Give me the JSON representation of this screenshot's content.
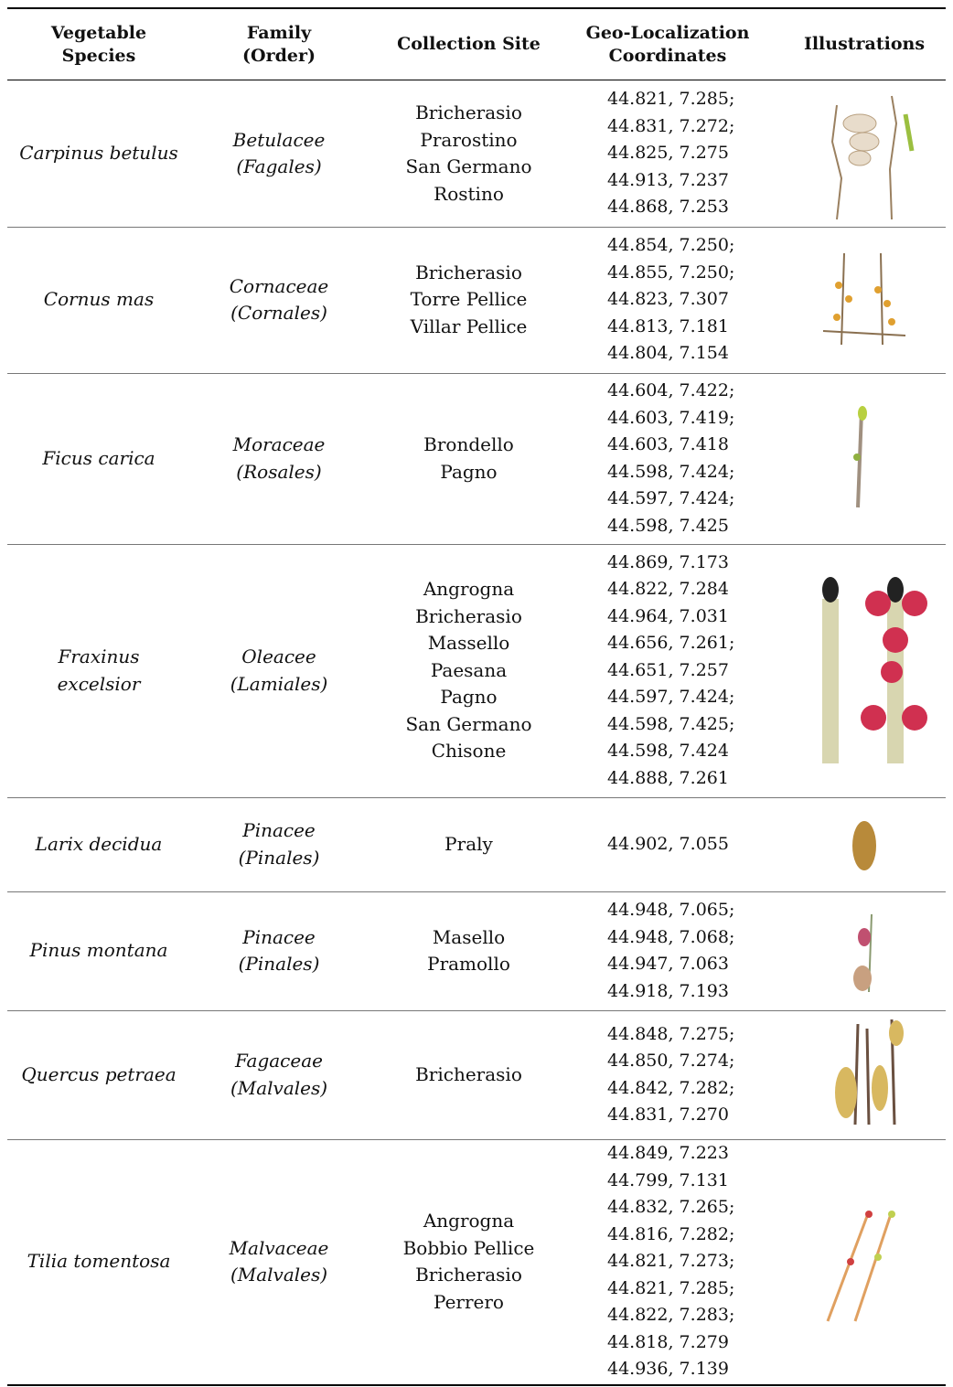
{
  "table": {
    "header": [
      [
        "Vegetable",
        "Species"
      ],
      [
        "Family",
        "(Order)"
      ],
      [
        "Collection Site"
      ],
      [
        "Geo-Localization",
        "Coordinates"
      ],
      [
        "Illustrations"
      ]
    ],
    "rows": [
      {
        "species": [
          "Carpinus betulus"
        ],
        "family": [
          "Betulacee",
          "(Fagales)"
        ],
        "sites": [
          "Bricherasio",
          "Prarostino",
          "San Germano",
          "Rostino"
        ],
        "coordinates": [
          "44.821, 7.285;",
          "44.831, 7.272;",
          "44.825, 7.275",
          "44.913, 7.237",
          "44.868, 7.253"
        ]
      },
      {
        "species": [
          "Cornus mas"
        ],
        "family": [
          "Cornaceae",
          "(Cornales)"
        ],
        "sites": [
          "Bricherasio",
          "Torre Pellice",
          "Villar Pellice"
        ],
        "coordinates": [
          "44.854, 7.250;",
          "44.855, 7.250;",
          "44.823, 7.307",
          "44.813, 7.181",
          "44.804, 7.154"
        ]
      },
      {
        "species": [
          "Ficus carica"
        ],
        "family": [
          "Moraceae",
          "(Rosales)"
        ],
        "sites": [
          "Brondello",
          "Pagno"
        ],
        "coordinates": [
          "44.604, 7.422;",
          "44.603, 7.419;",
          "44.603, 7.418",
          "44.598, 7.424;",
          "44.597, 7.424;",
          "44.598, 7.425"
        ]
      },
      {
        "species": [
          "Fraxinus",
          "excelsior"
        ],
        "family": [
          "Oleacee",
          "(Lamiales)"
        ],
        "sites": [
          "Angrogna",
          "Bricherasio",
          "Massello",
          "Paesana",
          "Pagno",
          "San Germano",
          "Chisone"
        ],
        "coordinates": [
          "44.869, 7.173",
          "44.822, 7.284",
          "44.964, 7.031",
          "44.656, 7.261;",
          "44.651, 7.257",
          "44.597, 7.424;",
          "44.598, 7.425;",
          "44.598, 7.424",
          "44.888, 7.261"
        ]
      },
      {
        "species": [
          "Larix decidua"
        ],
        "family": [
          "Pinacee",
          "(Pinales)"
        ],
        "sites": [
          "Praly"
        ],
        "coordinates": [
          "44.902, 7.055"
        ]
      },
      {
        "species": [
          "Pinus montana"
        ],
        "family": [
          "Pinacee",
          "(Pinales)"
        ],
        "sites": [
          "Masello",
          "Pramollo"
        ],
        "coordinates": [
          "44.948, 7.065;",
          "44.948, 7.068;",
          "44.947, 7.063",
          "44.918, 7.193"
        ]
      },
      {
        "species": [
          "Quercus petraea"
        ],
        "family": [
          "Fagaceae",
          "(Malvales)"
        ],
        "sites": [
          "Bricherasio"
        ],
        "coordinates": [
          "44.848, 7.275;",
          "44.850, 7.274;",
          "44.842, 7.282;",
          "44.831, 7.270"
        ]
      },
      {
        "species": [
          "Tilia tomentosa"
        ],
        "family": [
          "Malvaceae",
          "(Malvales)"
        ],
        "sites": [
          "Angrogna",
          "Bobbio Pellice",
          "Bricherasio",
          "Perrero"
        ],
        "coordinates": [
          "44.849, 7.223",
          "44.799, 7.131",
          "44.832, 7.265;",
          "44.816, 7.282;",
          "44.821, 7.273;",
          "44.821, 7.285;",
          "44.822, 7.283;",
          "44.818, 7.279",
          "44.936, 7.139"
        ]
      }
    ]
  }
}
